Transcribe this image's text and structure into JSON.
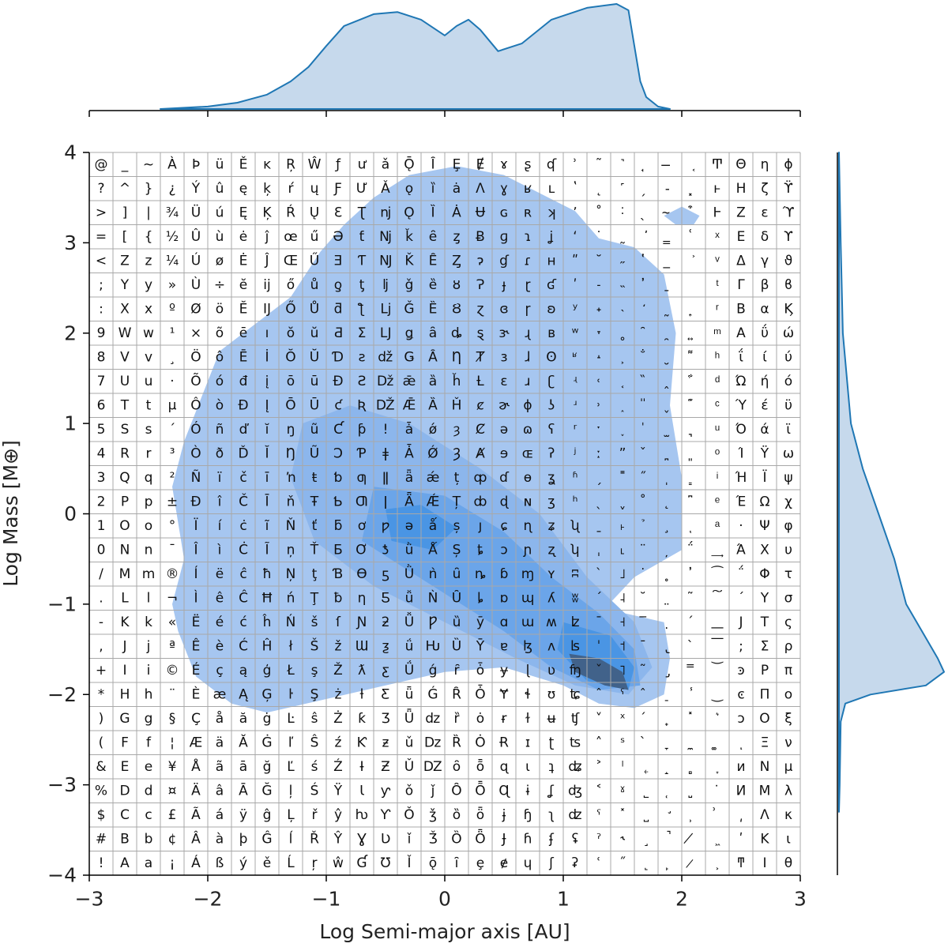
{
  "chart_data": {
    "type": "joint-kde",
    "xlabel": "Log Semi-major axis [AU]",
    "ylabel": "Log Mass [M⊕]",
    "xlim": [
      -3,
      3
    ],
    "xticks": [
      {
        "value": -3,
        "label": "−3"
      },
      {
        "value": -2,
        "label": "−2"
      },
      {
        "value": -1,
        "label": "−1"
      },
      0,
      1,
      2,
      3
    ],
    "ylim": [
      -4,
      4
    ],
    "yticks": [
      {
        "value": -4,
        "label": "−4"
      },
      {
        "value": -3,
        "label": "−3"
      },
      {
        "value": -2,
        "label": "−2"
      },
      {
        "value": -1,
        "label": "−1"
      },
      0,
      1,
      2,
      3,
      4
    ],
    "line_color": "#1f77b4",
    "marginal_fill": "#c6d9ec",
    "marginal_x": {
      "lim": [
        0,
        0.3
      ],
      "x": [
        -2.4,
        -2.0,
        -1.75,
        -1.5,
        -1.3,
        -1.15,
        -1.0,
        -0.85,
        -0.6,
        -0.4,
        -0.2,
        0,
        0.1,
        0.2,
        0.3,
        0.45,
        0.65,
        0.9,
        1.2,
        1.45,
        1.55,
        1.6,
        1.65,
        1.7,
        1.8,
        1.9
      ],
      "values": [
        0,
        0.007,
        0.018,
        0.041,
        0.079,
        0.12,
        0.18,
        0.237,
        0.271,
        0.277,
        0.255,
        0.21,
        0.237,
        0.255,
        0.226,
        0.165,
        0.187,
        0.255,
        0.289,
        0.3,
        0.282,
        0.18,
        0.079,
        0.034,
        0.007,
        0
      ]
    },
    "marginal_y": {
      "lim": [
        0,
        0.3
      ],
      "y": [
        4,
        3,
        2,
        1,
        0.5,
        0,
        -0.5,
        -1,
        -1.3,
        -1.6,
        -1.75,
        -1.9,
        -2.0,
        -2.1,
        -2.3,
        -3,
        -3.3
      ],
      "values": [
        0,
        0.005,
        0.011,
        0.034,
        0.068,
        0.113,
        0.158,
        0.192,
        0.237,
        0.282,
        0.3,
        0.248,
        0.09,
        0.018,
        0.005,
        0.002,
        0
      ]
    },
    "contours": [
      {
        "color": "#a6c6f0",
        "x": [
          -2.25,
          -2.3,
          -2.2,
          -2.3,
          -2.2,
          -2.05,
          -1.9,
          -1.6,
          -1.3,
          -1.05,
          -0.85,
          -0.6,
          -0.3,
          0.1,
          0.5,
          0.8,
          1.1,
          1.3,
          1.6,
          1.85,
          1.95,
          1.9,
          2.0,
          2.0,
          1.6,
          1.35,
          1.85,
          1.9,
          1.85,
          1.6,
          1.3,
          1.0,
          0.5,
          0,
          -0.5,
          -1.0,
          -1.5,
          -1.8,
          -2.1
        ],
        "y": [
          -1.3,
          -1.0,
          -0.5,
          0.3,
          0.8,
          1.3,
          1.8,
          2.1,
          2.4,
          2.9,
          3.2,
          3.5,
          3.75,
          3.85,
          3.75,
          3.55,
          3.35,
          3.05,
          2.95,
          2.65,
          2.0,
          1.2,
          0.4,
          -0.4,
          -0.7,
          -1.05,
          -1.2,
          -1.6,
          -2.0,
          -2.15,
          -2.1,
          -1.9,
          -1.7,
          -1.75,
          -1.9,
          -2.05,
          -2.2,
          -2.1,
          -1.8
        ]
      },
      {
        "color": "#a6c6f0",
        "x": [
          1.85,
          2.0,
          2.15,
          2.1,
          1.95
        ],
        "y": [
          3.3,
          3.4,
          3.3,
          3.2,
          3.2
        ]
      },
      {
        "color": "#8cb6ec",
        "x": [
          -1.2,
          -0.8,
          -0.3,
          0.3,
          0.8,
          1.2,
          1.6,
          1.75,
          1.55,
          1.1,
          0.6,
          0.0,
          -0.6,
          -1.1,
          -1.3
        ],
        "y": [
          1.0,
          1.2,
          1.0,
          0.5,
          0.0,
          -0.7,
          -1.2,
          -1.7,
          -2.0,
          -1.9,
          -1.6,
          -1.2,
          -0.8,
          -0.3,
          0.4
        ]
      },
      {
        "color": "#6ba5e9",
        "x": [
          -0.6,
          0.0,
          0.5,
          0.9,
          1.3,
          1.6,
          1.65,
          1.3,
          0.9,
          0.5,
          -0.1,
          -0.7
        ],
        "y": [
          0.3,
          0.2,
          -0.2,
          -0.7,
          -1.1,
          -1.5,
          -1.9,
          -1.95,
          -1.7,
          -1.3,
          -0.8,
          -0.3
        ]
      },
      {
        "color": "#4a95e4",
        "x": [
          1.0,
          1.4,
          1.6,
          1.55,
          1.2,
          0.95
        ],
        "y": [
          -1.2,
          -1.35,
          -1.7,
          -1.95,
          -1.85,
          -1.5
        ]
      },
      {
        "color": "#4a95e4",
        "x": [
          -0.5,
          -0.2,
          0.1,
          -0.1,
          -0.45
        ],
        "y": [
          0.05,
          0.1,
          -0.15,
          -0.4,
          -0.3
        ]
      },
      {
        "color": "#41628a",
        "x": [
          1.05,
          1.3,
          1.5,
          1.55,
          1.35,
          1.1
        ],
        "y": [
          -1.55,
          -1.6,
          -1.75,
          -1.95,
          -1.9,
          -1.75
        ]
      }
    ]
  },
  "glyph_table": {
    "columns": [
      [
        "@",
        "?",
        ">",
        "=",
        "<",
        ";",
        ":",
        "9",
        "8",
        "7",
        "6",
        "5",
        "4",
        "3",
        "2",
        "1",
        "0",
        "/",
        ".",
        "-",
        ",",
        "+",
        "*",
        ")",
        "(",
        "&",
        "%",
        "$",
        "#",
        "!"
      ],
      [
        "_",
        "^",
        "]",
        "[",
        "Z",
        "Y",
        "X",
        "W",
        "V",
        "U",
        "T",
        "S",
        "R",
        "Q",
        "P",
        "O",
        "N",
        "M",
        "L",
        "K",
        "J",
        "I",
        "H",
        "G",
        "F",
        "E",
        "D",
        "C",
        "B",
        "A"
      ],
      [
        "~",
        "}",
        "|",
        "{",
        "z",
        "y",
        "x",
        "w",
        "v",
        "u",
        "t",
        "s",
        "r",
        "q",
        "p",
        "o",
        "n",
        "m",
        "l",
        "k",
        "j",
        "i",
        "h",
        "g",
        "f",
        "e",
        "d",
        "c",
        "b",
        "a"
      ],
      [
        "À",
        "¿",
        "¾",
        "½",
        "¼",
        "»",
        "º",
        "¹",
        "¸",
        "·",
        "µ",
        "´",
        "³",
        "²",
        "±",
        "°",
        "¯",
        "®",
        "¬",
        "«",
        "ª",
        "©",
        "¨",
        "§",
        "¦",
        "¥",
        "¤",
        "£",
        "¢",
        "¡"
      ],
      [
        "Þ",
        "Ý",
        "Ü",
        "Û",
        "Ú",
        "Ù",
        "Ø",
        "×",
        "Ö",
        "Õ",
        "Ô",
        "Ó",
        "Ò",
        "Ñ",
        "Ð",
        "Ï",
        "Î",
        "Í",
        "Ì",
        "Ë",
        "Ê",
        "É",
        "È",
        "Ç",
        "Æ",
        "Å",
        "Ä",
        "Ã",
        "Â",
        "Á"
      ],
      [
        "ü",
        "û",
        "ú",
        "ù",
        "ø",
        "÷",
        "ö",
        "õ",
        "ô",
        "ó",
        "ò",
        "ñ",
        "ð",
        "ï",
        "î",
        "í",
        "ì",
        "ë",
        "ê",
        "é",
        "è",
        "ç",
        "æ",
        "å",
        "ä",
        "ã",
        "â",
        "á",
        "à",
        "ß"
      ],
      [
        "Ě",
        "ę",
        "Ę",
        "ė",
        "Ė",
        "ĕ",
        "Ĕ",
        "ē",
        "Ē",
        "đ",
        "Đ",
        "ď",
        "Ď",
        "č",
        "Č",
        "ċ",
        "Ċ",
        "ĉ",
        "Ĉ",
        "ć",
        "Ć",
        "ą",
        "Ą",
        "ă",
        "Ă",
        "ā",
        "Ā",
        "ÿ",
        "þ",
        "ý"
      ],
      [
        "ĸ",
        "ķ",
        "Ķ",
        "ĵ",
        "Ĵ",
        "ĳ",
        "Ĳ",
        "ı",
        "İ",
        "į",
        "Į",
        "ĭ",
        "Ĭ",
        "ī",
        "Ī",
        "ĩ",
        "Ĩ",
        "ħ",
        "Ħ",
        "ĥ",
        "Ĥ",
        "ģ",
        "Ģ",
        "ġ",
        "Ġ",
        "ğ",
        "Ğ",
        "ĝ",
        "Ĝ",
        "ě"
      ],
      [
        "Ŗ",
        "ŕ",
        "Ŕ",
        "œ",
        "Œ",
        "ő",
        "Ő",
        "ŏ",
        "Ŏ",
        "ō",
        "Ō",
        "ŋ",
        "Ŋ",
        "ŉ",
        "ň",
        "Ň",
        "ņ",
        "Ņ",
        "ń",
        "Ń",
        "ł",
        "Ł",
        "ŀ",
        "Ŀ",
        "ľ",
        "Ľ",
        "ļ",
        "Ļ",
        "ĺ",
        "Ĺ"
      ],
      [
        "Ŵ",
        "ų",
        "Ų",
        "ű",
        "Ű",
        "ů",
        "Ů",
        "ŭ",
        "Ŭ",
        "ū",
        "Ū",
        "ũ",
        "Ũ",
        "ŧ",
        "Ŧ",
        "ť",
        "Ť",
        "ţ",
        "Ţ",
        "š",
        "Š",
        "ş",
        "Ş",
        "ŝ",
        "Ŝ",
        "ś",
        "Ś",
        "ř",
        "Ř",
        "ŗ"
      ],
      [
        "ƒ",
        "Ƒ",
        "Ɛ",
        "Ə",
        "Ǝ",
        "ƍ",
        "ƌ",
        "Ƌ",
        "Ɗ",
        "Ɖ",
        "ƈ",
        "Ƈ",
        "Ɔ",
        "ƅ",
        "Ƅ",
        "ƃ",
        "Ƃ",
        "Ɓ",
        "ƀ",
        "ſ",
        "ž",
        "Ž",
        "ż",
        "Ż",
        "ź",
        "Ź",
        "Ÿ",
        "ŷ",
        "Ŷ",
        "ŵ"
      ],
      [
        "ư",
        "Ư",
        "Ʈ",
        "ƭ",
        "Ƭ",
        "ƫ",
        "ƪ",
        "Ʃ",
        "ƨ",
        "Ƨ",
        "Ʀ",
        "ƥ",
        "Ƥ",
        "ƣ",
        "Ƣ",
        "ơ",
        "Ơ",
        "Ɵ",
        "ƞ",
        "Ɲ",
        "Ɯ",
        "ƛ",
        "ƚ",
        "ƙ",
        "Ƙ",
        "Ɨ",
        "Ɩ",
        "ƕ",
        "Ɣ",
        "Ɠ"
      ],
      [
        "ǎ",
        "Ǎ",
        "ǌ",
        "ǋ",
        "Ǌ",
        "ǉ",
        "ǈ",
        "Ǉ",
        "ǆ",
        "ǅ",
        "Ǆ",
        "ǃ",
        "ǂ",
        "ǁ",
        "ǀ",
        "ƿ",
        "ƾ",
        "ƽ",
        "Ƽ",
        "ƻ",
        "ƺ",
        "ƹ",
        "Ƹ",
        "Ʒ",
        "ƶ",
        "Ƶ",
        "ƴ",
        "Ƴ",
        "Ʋ",
        "Ʊ"
      ],
      [
        "Ǭ",
        "ǫ",
        "Ǫ",
        "ǩ",
        "Ǩ",
        "ǧ",
        "Ǧ",
        "ǥ",
        "Ǥ",
        "ǣ",
        "Ǣ",
        "ǡ",
        "Ǡ",
        "ǟ",
        "Ǟ",
        "ǝ",
        "ǜ",
        "Ǜ",
        "ǚ",
        "Ǚ",
        "ǘ",
        "Ǘ",
        "ǖ",
        "Ǖ",
        "ǔ",
        "Ǔ",
        "ǒ",
        "Ǒ",
        "ǐ",
        "Ǐ"
      ],
      [
        "Ȋ",
        "ȉ",
        "Ȉ",
        "ȇ",
        "Ȇ",
        "ȅ",
        "Ȅ",
        "ȃ",
        "Ȃ",
        "ȁ",
        "Ȁ",
        "ǿ",
        "Ǿ",
        "ǽ",
        "Ǽ",
        "ǻ",
        "Ǻ",
        "ǹ",
        "Ǹ",
        "Ƿ",
        "Ƕ",
        "ǵ",
        "Ǵ",
        "ǳ",
        "ǲ",
        "Ǳ",
        "ǰ",
        "ǯ",
        "Ǯ",
        "ǭ"
      ],
      [
        "Ȩ",
        "ȧ",
        "Ȧ",
        "ȥ",
        "Ȥ",
        "ȣ",
        "Ȣ",
        "ȡ",
        "Ƞ",
        "ȟ",
        "Ȟ",
        "ȝ",
        "Ȝ",
        "ț",
        "Ț",
        "ș",
        "Ș",
        "ȗ",
        "Ȗ",
        "ȕ",
        "Ȕ",
        "ȓ",
        "Ȓ",
        "ȑ",
        "Ȑ",
        "ȏ",
        "Ȏ",
        "ȍ",
        "Ȍ",
        "ȋ"
      ],
      [
        "Ɇ",
        "Ʌ",
        "Ʉ",
        "Ƀ",
        "ɂ",
        "Ɂ",
        "ɀ",
        "ȿ",
        "Ⱦ",
        "Ƚ",
        "ȼ",
        "Ȼ",
        "Ⱥ",
        "ȹ",
        "ȸ",
        "ȷ",
        "ȶ",
        "ȵ",
        "ȴ",
        "ȳ",
        "Ȳ",
        "ȱ",
        "Ȱ",
        "ȯ",
        "Ȯ",
        "ȭ",
        "Ȭ",
        "ȫ",
        "Ȫ",
        "ȩ"
      ],
      [
        "ɤ",
        "ɣ",
        "ɢ",
        "ɡ",
        "ɠ",
        "ɟ",
        "ɞ",
        "ɝ",
        "ɜ",
        "ɛ",
        "ɚ",
        "ə",
        "ɘ",
        "ɗ",
        "ɖ",
        "ɕ",
        "ɔ",
        "ɓ",
        "ɒ",
        "ɑ",
        "ɐ",
        "ɏ",
        "Ɏ",
        "ɍ",
        "Ɍ",
        "ɋ",
        "Ɋ",
        "ɉ",
        "Ɉ",
        "ɇ"
      ],
      [
        "ʂ",
        "ʁ",
        "ʀ",
        "ɿ",
        "ɾ",
        "ɽ",
        "ɼ",
        "ɻ",
        "ɺ",
        "ɹ",
        "ɸ",
        "ɷ",
        "ɶ",
        "ɵ",
        "ɴ",
        "ɳ",
        "ɲ",
        "ɱ",
        "ɰ",
        "ɯ",
        "ɮ",
        "ɭ",
        "ɬ",
        "ɫ",
        "ɪ",
        "ɩ",
        "ɨ",
        "ɧ",
        "ɦ",
        "ɥ"
      ],
      [
        "ʠ",
        "ʟ",
        "ʞ",
        "ʝ",
        "ʜ",
        "ʛ",
        "ʚ",
        "ʙ",
        "ʘ",
        "ʗ",
        "ʖ",
        "ʕ",
        "ʔ",
        "ʓ",
        "ʒ",
        "ʑ",
        "ʐ",
        "ʏ",
        "ʎ",
        "ʍ",
        "ʌ",
        "ʋ",
        "ʊ",
        "ʉ",
        "ʈ",
        "ʇ",
        "ʆ",
        "ʅ",
        "ʄ",
        "ʃ"
      ],
      [
        "ʾ",
        "ʽ",
        "ʼ",
        "ʻ",
        "ʺ",
        "ʹ",
        "ʸ",
        "ʷ",
        "ʶ",
        "ʵ",
        "ʴ",
        "ʳ",
        "ʲ",
        "ʱ",
        "ʰ",
        "ʯ",
        "ʮ",
        "ʭ",
        "ʬ",
        "ʫ",
        "ʪ",
        "ʩ",
        "ʨ",
        "ʧ",
        "ʦ",
        "ʥ",
        "ʤ",
        "ʣ",
        "ʢ",
        "ʡ"
      ],
      [
        "˜",
        "˛",
        "˚",
        "˙",
        "˘",
        "˗",
        "˖",
        "˕",
        "˔",
        "˓",
        "˒",
        "ˑ",
        "ː",
        "ˏ",
        "ˎ",
        "ˍ",
        "ˌ",
        "ˋ",
        "ˊ",
        "ˉ",
        "ˈ",
        "ˇ",
        "ˆ",
        "˅",
        "˄",
        "˃",
        "˂",
        "ˁ",
        "ˀ",
        "ʿ"
      ],
      [
        "˺",
        "˹",
        "˸",
        "˷",
        "˶",
        "˵",
        "˴",
        "˳",
        "˲",
        "˱",
        "˰",
        "˯",
        "ˮ",
        "˭",
        "ˬ",
        "˫",
        "˪",
        "˩",
        "˨",
        "˧",
        "˦",
        "˥",
        "ˤ",
        "ˣ",
        "ˢ",
        "ˡ",
        "ˠ",
        "˟",
        "˞",
        "˝"
      ],
      [
        "̘",
        "̗",
        "̖",
        "̕",
        "̔",
        "̓",
        "̒",
        "̑",
        "̐",
        "̏",
        "̎",
        "̍",
        "̌",
        "̋",
        "̊",
        "̉",
        "̈",
        "̇",
        "̆",
        "̅",
        "̄",
        "̃",
        "̂",
        "́",
        "̀",
        "˿",
        "˾",
        "˽",
        "˼",
        "˻"
      ],
      [
        "̶",
        "̵",
        "̴",
        "̳",
        "̲",
        "̱",
        "̰",
        "̯",
        "̮",
        "̭",
        "̬",
        "̫",
        "̪",
        "̩",
        "̨",
        "̧",
        "̦",
        "̥",
        "̤",
        "̣",
        "̢",
        "̡",
        "̠",
        "̟",
        "̞",
        "̝",
        "̜",
        "̛",
        "̚",
        "̙"
      ],
      [
        "͔",
        "͓",
        "͒",
        "͑",
        "͐",
        "͏",
        "͎",
        "͍",
        "͌",
        "͋",
        "͊",
        "͉",
        "͈",
        "͇",
        "͆",
        "ͅ",
        "̈́",
        "̓",
        "͂",
        "́",
        "̀",
        "̿",
        "̾",
        "̽",
        "̼",
        "̻",
        "̺",
        "̹",
        "̸",
        "̷"
      ],
      [
        "Ͳ",
        "ͱ",
        "Ͱ",
        "ͯ",
        "ͮ",
        "ͭ",
        "ͬ",
        "ͫ",
        "ͪ",
        "ͩ",
        "ͨ",
        "ͧ",
        "ͦ",
        "ͥ",
        "ͤ",
        "ͣ",
        "͢",
        "͡",
        "͠",
        "͟",
        "͞",
        "͝",
        "͜",
        "͛",
        "͚",
        "͙",
        "͘",
        "͗",
        "͖",
        "͕"
      ],
      [
        "Θ",
        "Η",
        "Ζ",
        "Ε",
        "Δ",
        "Γ",
        "Β",
        "Α",
        "ΐ",
        "Ώ",
        "Ύ",
        "Ό",
        "Ί",
        "Ή",
        "Έ",
        "·",
        "Ά",
        "΅",
        "΄",
        "Ϳ",
        ";",
        "ͽ",
        "ͼ",
        "ͻ",
        "ͺ",
        "ͷ",
        "Ͷ",
        "͵",
        "ʹ",
        "ͳ"
      ],
      [
        "η",
        "ζ",
        "ε",
        "δ",
        "γ",
        "β",
        "α",
        "ΰ",
        "ί",
        "ή",
        "έ",
        "ά",
        "Ϋ",
        "Ϊ",
        "Ω",
        "Ψ",
        "Χ",
        "Φ",
        "Υ",
        "Τ",
        "Σ",
        "Ρ",
        "Π",
        "Ο",
        "Ξ",
        "Ν",
        "Μ",
        "Λ",
        "Κ",
        "Ι"
      ],
      [
        "ϕ",
        "ϔ",
        "ϓ",
        "ϒ",
        "ϑ",
        "ϐ",
        "Ϗ",
        "ώ",
        "ύ",
        "ό",
        "ϋ",
        "ϊ",
        "ω",
        "ψ",
        "χ",
        "φ",
        "υ",
        "τ",
        "σ",
        "ς",
        "ρ",
        "π",
        "ο",
        "ξ",
        "ν",
        "μ",
        "λ",
        "κ",
        "ι",
        "θ"
      ]
    ]
  }
}
